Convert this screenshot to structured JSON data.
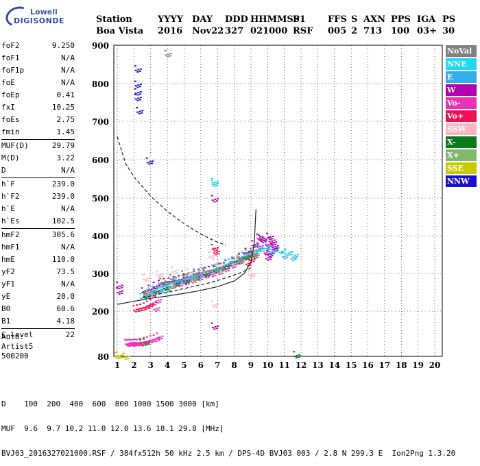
{
  "logo": {
    "line1": "Lowell",
    "line2": "DIGISONDE"
  },
  "header": {
    "labels": [
      "Station",
      "YYYY",
      "DAY",
      "DDD",
      "HHMMSS",
      "P1",
      "FFS",
      "S",
      "AXN",
      "PPS",
      "IGA",
      "PS"
    ],
    "values": [
      "Boa Vista",
      "2016",
      "Nov22",
      "327",
      "021000",
      "RSF",
      "005",
      "2",
      "713",
      "100",
      "03+",
      "30"
    ]
  },
  "params": [
    [
      {
        "label": "foF2",
        "value": "9.250"
      },
      {
        "label": "foF1",
        "value": "N/A"
      },
      {
        "label": "foF1p",
        "value": "N/A"
      },
      {
        "label": "foE",
        "value": "N/A"
      },
      {
        "label": "foEp",
        "value": "0.41"
      },
      {
        "label": "fxI",
        "value": "10.25"
      },
      {
        "label": "foEs",
        "value": "2.75"
      },
      {
        "label": "fmin",
        "value": "1.45"
      }
    ],
    [
      {
        "label": "MUF(D)",
        "value": "29.79"
      },
      {
        "label": "M(D)",
        "value": "3.22"
      },
      {
        "label": "D",
        "value": "N/A"
      }
    ],
    [
      {
        "label": "h`F",
        "value": "239.0"
      },
      {
        "label": "h`F2",
        "value": "239.0"
      },
      {
        "label": "h`E",
        "value": "N/A"
      },
      {
        "label": "h`Es",
        "value": "102.5"
      }
    ],
    [
      {
        "label": "hmF2",
        "value": "305.6"
      },
      {
        "label": "hmF1",
        "value": "N/A"
      },
      {
        "label": "hmE",
        "value": "110.0"
      },
      {
        "label": "yF2",
        "value": "73.5"
      },
      {
        "label": "yF1",
        "value": "N/A"
      },
      {
        "label": "yE",
        "value": "20.0"
      },
      {
        "label": "B0",
        "value": "60.6"
      },
      {
        "label": "B1",
        "value": "4.18"
      }
    ],
    [
      {
        "label": "C-level",
        "value": "22"
      }
    ]
  ],
  "auto": {
    "line1": "Auto:",
    "line2": "Artist5",
    "line3": "500200"
  },
  "legend": [
    {
      "label": "NoVal",
      "color": "#808080"
    },
    {
      "label": "NNE",
      "color": "#22d8f2"
    },
    {
      "label": "E",
      "color": "#2fb0e8"
    },
    {
      "label": "W",
      "color": "#b000b0"
    },
    {
      "label": "Vo-",
      "color": "#ee2fb8"
    },
    {
      "label": "Vo+",
      "color": "#ee1050"
    },
    {
      "label": "SSW",
      "color": "#f7b7c2"
    },
    {
      "label": "X-",
      "color": "#0a7a1a"
    },
    {
      "label": "X+",
      "color": "#7fb96a"
    },
    {
      "label": "SSE",
      "color": "#c9c900"
    },
    {
      "label": "NNW",
      "color": "#1a10d0"
    }
  ],
  "footer": {
    "d_label": "D",
    "d_values": "100  200  400  600  800 1000 1500 3000 [km]",
    "muf_label": "MUF",
    "muf_values": "9.6  9.7 10.2 11.0 12.0 13.6 18.1 29.8 [MHz]",
    "file_line": "BVJ03_2016327021000.RSF / 384fx512h 50 kHz 2.5 km / DPS-4D BVJ03 003 / 2.8 N 299.3 E  Ion2Png 1.3.20"
  },
  "chart_data": {
    "type": "scatter",
    "title": "",
    "xlabel": "",
    "ylabel": "",
    "xlim": [
      1,
      20
    ],
    "ylim": [
      80,
      900
    ],
    "xticks": [
      1,
      2,
      3,
      4,
      5,
      6,
      7,
      8,
      9,
      10,
      11,
      12,
      13,
      14,
      15,
      16,
      17,
      18,
      19,
      20
    ],
    "yticks": [
      80,
      200,
      300,
      400,
      500,
      600,
      700,
      800,
      900
    ],
    "grid": true,
    "legend": "right",
    "series": [
      {
        "color": "#1a10d0",
        "values": [
          [
            2.2,
            840
          ],
          [
            2.2,
            800
          ],
          [
            2.2,
            780
          ],
          [
            2.2,
            765
          ],
          [
            2.3,
            730
          ],
          [
            2.9,
            598
          ]
        ]
      },
      {
        "color": "#b000b0",
        "values": [
          [
            2.6,
            255
          ],
          [
            3.0,
            262
          ],
          [
            3.3,
            270
          ],
          [
            3.6,
            275
          ],
          [
            3.9,
            280
          ],
          [
            4.2,
            282
          ],
          [
            4.5,
            285
          ],
          [
            4.8,
            288
          ],
          [
            5.1,
            292
          ],
          [
            5.4,
            295
          ],
          [
            5.7,
            300
          ],
          [
            6.0,
            305
          ],
          [
            6.3,
            308
          ],
          [
            6.6,
            312
          ],
          [
            6.9,
            316
          ],
          [
            7.3,
            320
          ],
          [
            7.6,
            328
          ],
          [
            8.0,
            335
          ],
          [
            8.4,
            345
          ],
          [
            8.8,
            360
          ],
          [
            9.2,
            380
          ],
          [
            9.6,
            395
          ],
          [
            10.0,
            380
          ],
          [
            10.4,
            370
          ],
          [
            6.8,
            162
          ],
          [
            6.8,
            500
          ],
          [
            1.1,
            270
          ],
          [
            1.1,
            255
          ]
        ]
      },
      {
        "color": "#ee2fb8",
        "values": [
          [
            2.7,
            245
          ],
          [
            3.1,
            250
          ],
          [
            3.5,
            258
          ],
          [
            3.9,
            265
          ],
          [
            4.3,
            270
          ],
          [
            4.7,
            275
          ],
          [
            5.1,
            280
          ],
          [
            5.5,
            285
          ],
          [
            5.9,
            292
          ],
          [
            6.3,
            298
          ],
          [
            6.7,
            302
          ],
          [
            7.1,
            308
          ],
          [
            7.5,
            315
          ],
          [
            7.9,
            325
          ],
          [
            8.3,
            335
          ],
          [
            8.7,
            348
          ],
          [
            9.1,
            360
          ],
          [
            9.5,
            375
          ],
          [
            9.9,
            360
          ],
          [
            3.1,
            225
          ],
          [
            3.4,
            232
          ],
          [
            3.3,
            210
          ]
        ]
      },
      {
        "color": "#22d8f2",
        "values": [
          [
            2.5,
            240
          ],
          [
            2.9,
            250
          ],
          [
            3.2,
            260
          ],
          [
            3.6,
            268
          ],
          [
            4.0,
            274
          ],
          [
            4.4,
            280
          ],
          [
            4.8,
            285
          ],
          [
            5.2,
            290
          ],
          [
            5.6,
            296
          ],
          [
            6.0,
            302
          ],
          [
            6.4,
            308
          ],
          [
            6.8,
            315
          ],
          [
            7.2,
            322
          ],
          [
            7.6,
            330
          ],
          [
            8.0,
            338
          ],
          [
            8.4,
            348
          ],
          [
            8.8,
            356
          ],
          [
            9.2,
            362
          ],
          [
            9.6,
            368
          ],
          [
            10.0,
            372
          ],
          [
            10.4,
            366
          ],
          [
            10.8,
            362
          ],
          [
            11.2,
            358
          ],
          [
            11.6,
            352
          ],
          [
            6.8,
            545
          ],
          [
            6.8,
            540
          ],
          [
            3.6,
            258
          ],
          [
            4.0,
            262
          ]
        ]
      },
      {
        "color": "#2fb0e8",
        "values": [
          [
            3.0,
            255
          ],
          [
            3.8,
            270
          ],
          [
            4.6,
            284
          ],
          [
            5.4,
            296
          ],
          [
            6.2,
            306
          ],
          [
            7.0,
            318
          ],
          [
            7.8,
            332
          ],
          [
            8.6,
            350
          ],
          [
            9.4,
            368
          ],
          [
            10.2,
            360
          ],
          [
            11.0,
            350
          ],
          [
            11.5,
            345
          ]
        ]
      },
      {
        "color": "#ee1050",
        "values": [
          [
            2.1,
            208
          ],
          [
            2.3,
            210
          ],
          [
            2.5,
            212
          ],
          [
            2.7,
            215
          ],
          [
            2.9,
            220
          ],
          [
            8.8,
            330
          ],
          [
            9.0,
            340
          ],
          [
            9.2,
            350
          ],
          [
            6.8,
            370
          ],
          [
            6.9,
            360
          ]
        ]
      },
      {
        "color": "#0a7a1a",
        "values": [
          [
            2.7,
            245
          ],
          [
            3.3,
            256
          ],
          [
            3.9,
            266
          ],
          [
            4.5,
            276
          ],
          [
            5.1,
            284
          ],
          [
            5.7,
            292
          ],
          [
            6.3,
            302
          ],
          [
            6.9,
            312
          ],
          [
            7.5,
            322
          ],
          [
            8.1,
            334
          ],
          [
            8.7,
            346
          ],
          [
            9.0,
            352
          ],
          [
            2.5,
            118
          ],
          [
            2.7,
            120
          ],
          [
            11.7,
            86
          ]
        ]
      },
      {
        "color": "#7fb96a",
        "values": [
          [
            2.8,
            248
          ],
          [
            4.2,
            270
          ],
          [
            5.6,
            290
          ],
          [
            7.0,
            312
          ],
          [
            8.4,
            338
          ],
          [
            9.3,
            355
          ]
        ]
      },
      {
        "color": "#f7b7c2",
        "values": [
          [
            2.7,
            290
          ],
          [
            3.5,
            300
          ],
          [
            4.4,
            310
          ],
          [
            5.3,
            305
          ],
          [
            6.2,
            310
          ],
          [
            6.6,
            350
          ],
          [
            6.9,
            330
          ],
          [
            8.0,
            330
          ],
          [
            9.0,
            300
          ],
          [
            6.8,
            220
          ]
        ]
      },
      {
        "color": "#c9c900",
        "values": [
          [
            1.0,
            84
          ],
          [
            1.1,
            85
          ],
          [
            1.5,
            82
          ],
          [
            2.4,
            120
          ]
        ]
      },
      {
        "color": "#808080",
        "values": [
          [
            3.7,
            280
          ],
          [
            4.3,
            290
          ],
          [
            5.0,
            300
          ],
          [
            5.7,
            305
          ],
          [
            6.4,
            310
          ],
          [
            7.2,
            320
          ],
          [
            8.3,
            340
          ],
          [
            9.1,
            355
          ],
          [
            4.0,
            880
          ]
        ]
      },
      {
        "color": "#ee2fb8",
        "values": [
          [
            1.6,
            118
          ],
          [
            1.7,
            117
          ],
          [
            1.8,
            118
          ],
          [
            1.9,
            118
          ],
          [
            2.0,
            117
          ],
          [
            2.1,
            118
          ],
          [
            2.2,
            119
          ],
          [
            2.3,
            118
          ],
          [
            2.5,
            121
          ],
          [
            2.7,
            123
          ],
          [
            2.9,
            125
          ],
          [
            3.1,
            128
          ],
          [
            3.3,
            130
          ],
          [
            3.5,
            135
          ]
        ]
      },
      {
        "color": "#b000b0",
        "values": [
          [
            10.1,
            400
          ],
          [
            10.2,
            390
          ],
          [
            10.3,
            385
          ],
          [
            10.4,
            375
          ],
          [
            10.1,
            355
          ],
          [
            10.0,
            345
          ],
          [
            9.5,
            398
          ],
          [
            9.7,
            392
          ]
        ]
      }
    ],
    "curves": [
      {
        "style": "dashed",
        "points": [
          [
            1.0,
            660
          ],
          [
            1.5,
            590
          ],
          [
            2.0,
            555
          ],
          [
            2.5,
            530
          ],
          [
            3.0,
            505
          ],
          [
            3.5,
            485
          ],
          [
            4.0,
            465
          ],
          [
            4.5,
            448
          ],
          [
            5.0,
            432
          ],
          [
            5.5,
            418
          ],
          [
            6.0,
            405
          ],
          [
            6.5,
            393
          ],
          [
            7.0,
            383
          ],
          [
            7.5,
            375
          ]
        ]
      },
      {
        "style": "dashed",
        "points": [
          [
            2.5,
            235
          ],
          [
            3.5,
            245
          ],
          [
            4.5,
            255
          ],
          [
            5.5,
            265
          ],
          [
            6.5,
            275
          ],
          [
            7.5,
            288
          ],
          [
            8.5,
            304
          ],
          [
            9.0,
            315
          ]
        ]
      },
      {
        "style": "solid",
        "points": [
          [
            1.0,
            218
          ],
          [
            2.0,
            226
          ],
          [
            3.0,
            234
          ],
          [
            4.0,
            240
          ],
          [
            5.0,
            247
          ],
          [
            6.0,
            255
          ],
          [
            7.0,
            265
          ],
          [
            8.0,
            280
          ],
          [
            8.6,
            300
          ],
          [
            9.0,
            330
          ],
          [
            9.2,
            380
          ],
          [
            9.3,
            470
          ]
        ]
      }
    ]
  }
}
